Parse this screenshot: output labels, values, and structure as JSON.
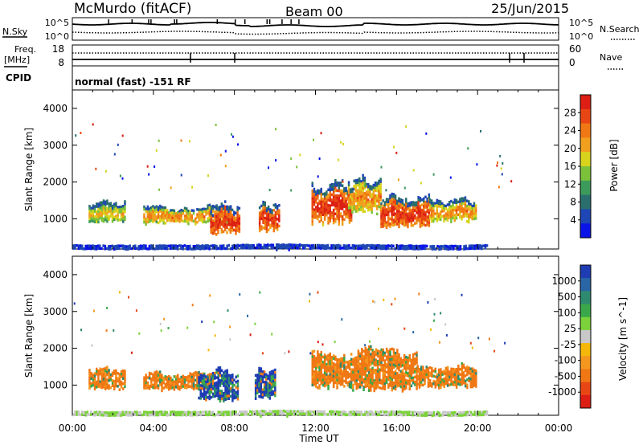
{
  "header": {
    "station": "McMurdo (fitACF)",
    "beam": "Beam 00",
    "date": "25/Jun/2015"
  },
  "noise_panel": {
    "left_label": "N.Sky",
    "right_label": "N.Search",
    "left_ticks": [
      "10^5",
      "10^0"
    ],
    "right_ticks": [
      "10^5",
      "10^0"
    ]
  },
  "freq_panel": {
    "left_label_1": "Freq.",
    "left_label_2": "[MHz]",
    "right_label": "Nave",
    "left_ticks": [
      "18",
      "8"
    ],
    "right_ticks": [
      "60",
      "0"
    ]
  },
  "cpid": {
    "label": "CPID",
    "text": "normal (fast) -151 RF"
  },
  "x_axis": {
    "label": "Time UT",
    "ticks": [
      "00:00",
      "04:00",
      "08:00",
      "12:00",
      "16:00",
      "20:00",
      "00:00"
    ]
  },
  "chart_data": [
    {
      "type": "heatmap",
      "title": "Power",
      "ylabel": "Slant Range [km]",
      "xlabel": "Time UT",
      "y_ticks": [
        1000,
        2000,
        3000,
        4000
      ],
      "ylim": [
        180,
        4500
      ],
      "xlim_hours": [
        0,
        24
      ],
      "colorbar": {
        "label": "Power [dB]",
        "ticks": [
          "4",
          "8",
          "12",
          "16",
          "20",
          "24",
          "28"
        ],
        "colors": [
          "#0a14e6",
          "#1e46b4",
          "#2a6e6e",
          "#3c9a5a",
          "#7cc13a",
          "#d8d41e",
          "#f0a01e",
          "#f07814",
          "#e84614",
          "#dc1e14"
        ]
      },
      "regions": [
        {
          "t0": 0.8,
          "t1": 2.6,
          "r0": 850,
          "r1": 1550,
          "level": "low-mid"
        },
        {
          "t0": 3.5,
          "t1": 7.8,
          "r0": 850,
          "r1": 1400,
          "level": "mid"
        },
        {
          "t0": 6.8,
          "t1": 8.2,
          "r0": 500,
          "r1": 1500,
          "level": "high"
        },
        {
          "t0": 9.2,
          "t1": 10.2,
          "r0": 600,
          "r1": 1500,
          "level": "high"
        },
        {
          "t0": 11.8,
          "t1": 13.8,
          "r0": 800,
          "r1": 2100,
          "level": "high"
        },
        {
          "t0": 13.6,
          "t1": 15.2,
          "r0": 1100,
          "r1": 2200,
          "level": "mid"
        },
        {
          "t0": 15.2,
          "t1": 17.6,
          "r0": 700,
          "r1": 1700,
          "level": "high"
        },
        {
          "t0": 17.6,
          "t1": 19.9,
          "r0": 900,
          "r1": 1600,
          "level": "mid"
        },
        {
          "t0": 0.0,
          "t1": 20.5,
          "r0": 180,
          "r1": 330,
          "level": "ground"
        }
      ]
    },
    {
      "type": "heatmap",
      "title": "Velocity",
      "ylabel": "Slant Range [km]",
      "xlabel": "Time UT",
      "y_ticks": [
        1000,
        2000,
        3000,
        4000
      ],
      "ylim": [
        180,
        4500
      ],
      "xlim_hours": [
        0,
        24
      ],
      "colorbar": {
        "label": "Velocity [m s^-1]",
        "ticks": [
          "1000",
          "500",
          "100",
          "25",
          "-25",
          "-100",
          "-500",
          "-1000"
        ],
        "colors": [
          "#1e3cb4",
          "#2a66a6",
          "#2e8a6e",
          "#3aa84a",
          "#7cd23a",
          "#c8c8c8",
          "#f5b80a",
          "#f5961e",
          "#f07814",
          "#e84614",
          "#dc1e14"
        ]
      },
      "regions": [
        {
          "t0": 0.8,
          "t1": 2.6,
          "r0": 850,
          "r1": 1550,
          "value": "-100"
        },
        {
          "t0": 3.5,
          "t1": 6.8,
          "r0": 850,
          "r1": 1400,
          "value": "-100"
        },
        {
          "t0": 6.2,
          "t1": 8.2,
          "r0": 500,
          "r1": 1500,
          "value": "1000"
        },
        {
          "t0": 9.0,
          "t1": 10.0,
          "r0": 600,
          "r1": 1500,
          "value": "1000"
        },
        {
          "t0": 11.8,
          "t1": 17.0,
          "r0": 800,
          "r1": 2100,
          "value": "-100"
        },
        {
          "t0": 17.0,
          "t1": 19.9,
          "r0": 900,
          "r1": 1600,
          "value": "-100"
        },
        {
          "t0": 0.0,
          "t1": 20.5,
          "r0": 180,
          "r1": 330,
          "value": "25"
        }
      ]
    }
  ]
}
